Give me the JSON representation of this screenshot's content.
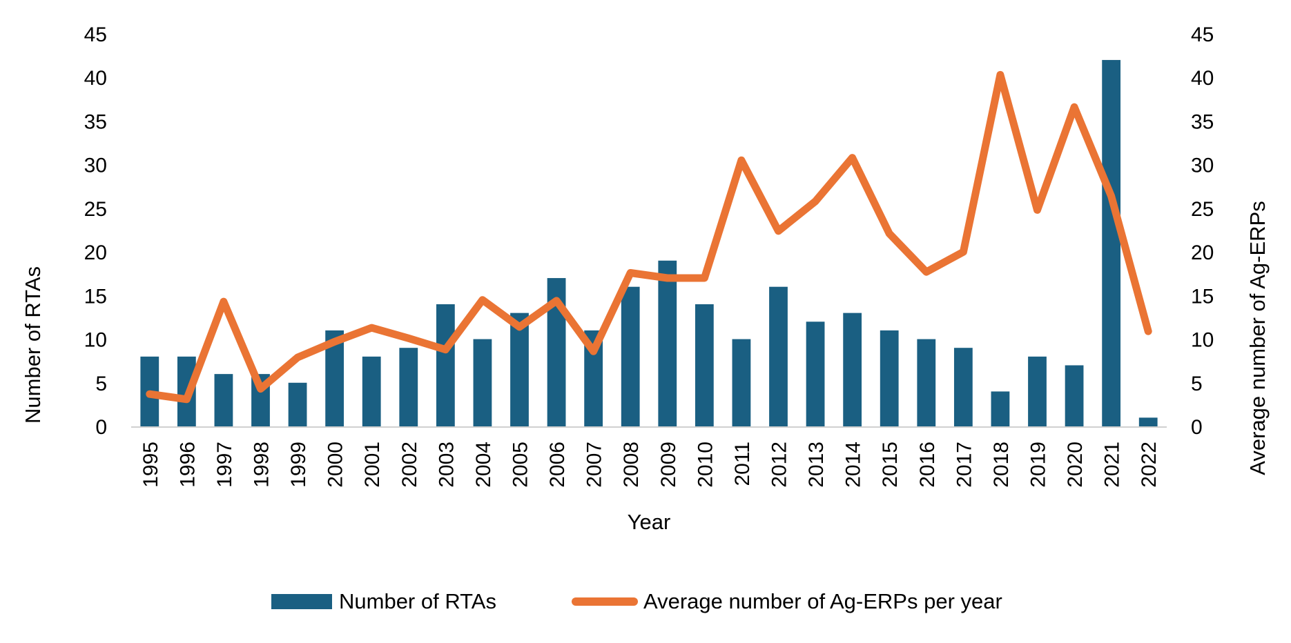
{
  "chart_data": {
    "type": "bar",
    "combo": "bar+line (dual axis)",
    "title": "",
    "xlabel": "Year",
    "ylabel": "Number of RTAs",
    "y2label": "Average number of Ag-ERPs",
    "ylim": [
      0,
      45
    ],
    "y2lim": [
      0,
      45
    ],
    "yticks": [
      "0",
      "5",
      "10",
      "15",
      "20",
      "25",
      "30",
      "35",
      "40",
      "45"
    ],
    "y2ticks": [
      "0",
      "5",
      "10",
      "15",
      "20",
      "25",
      "30",
      "35",
      "40",
      "45"
    ],
    "grid": false,
    "legend_position": "bottom",
    "categories": [
      "1995",
      "1996",
      "1997",
      "1998",
      "1999",
      "2000",
      "2001",
      "2002",
      "2003",
      "2004",
      "2005",
      "2006",
      "2007",
      "2008",
      "2009",
      "2010",
      "2011",
      "2012",
      "2013",
      "2014",
      "2015",
      "2016",
      "2017",
      "2018",
      "2019",
      "2020",
      "2021",
      "2022"
    ],
    "series": [
      {
        "name": "Number of RTAs",
        "type": "bar",
        "axis": "left",
        "color": "#1a5f82",
        "values": [
          8,
          8,
          6,
          6,
          5,
          11,
          8,
          9,
          14,
          10,
          13,
          17,
          11,
          16,
          19,
          14,
          10,
          16,
          12,
          13,
          11,
          10,
          9,
          4,
          8,
          7,
          42,
          1
        ]
      },
      {
        "name": "Average number of Ag-ERPs per year",
        "type": "line",
        "axis": "right",
        "color": "#ea7434",
        "values": [
          3.7,
          3.1,
          14.3,
          4.3,
          7.9,
          9.7,
          11.3,
          10.1,
          8.8,
          14.5,
          11.4,
          14.4,
          8.6,
          17.6,
          17.0,
          17.0,
          30.5,
          22.4,
          25.8,
          30.8,
          22.1,
          17.7,
          20.0,
          40.3,
          24.8,
          36.6,
          26.4,
          10.9
        ]
      }
    ]
  },
  "legend": {
    "items": [
      {
        "label": "Number of RTAs"
      },
      {
        "label": "Average number of Ag-ERPs per year"
      }
    ]
  }
}
